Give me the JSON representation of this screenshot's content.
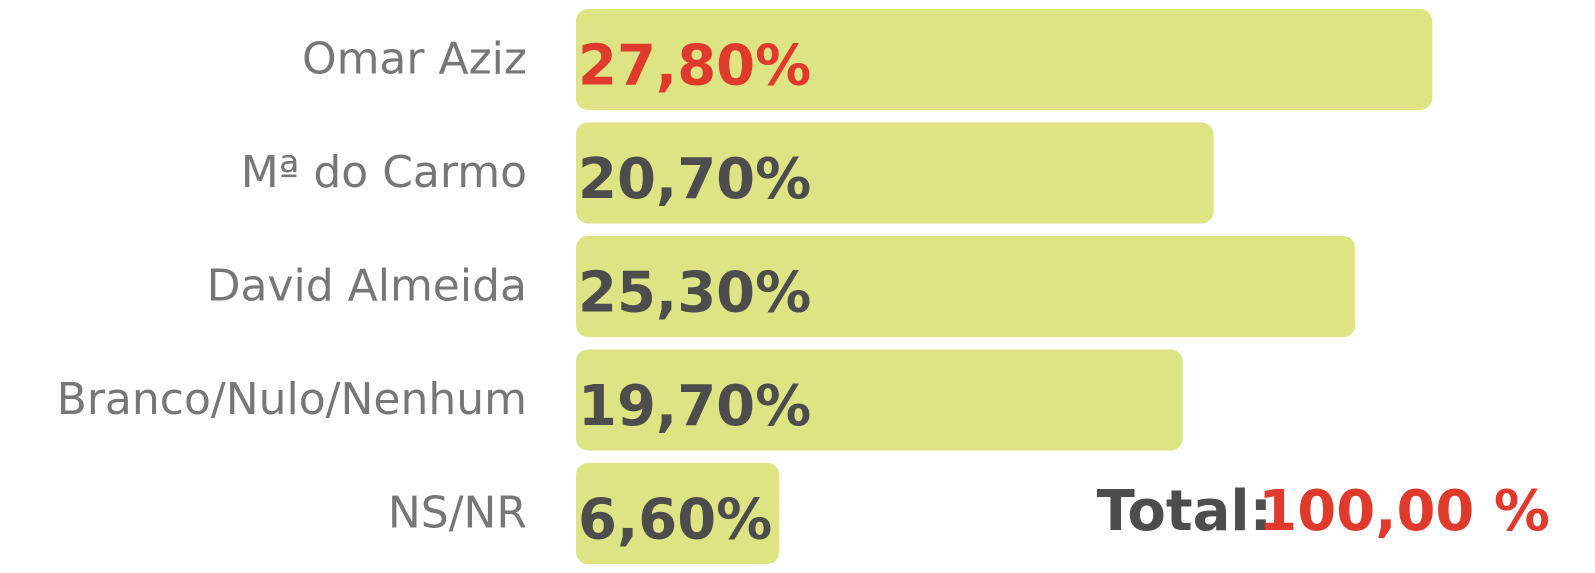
{
  "chart_data": {
    "type": "bar",
    "orientation": "horizontal",
    "categories": [
      "Omar Aziz",
      "Mª do Carmo",
      "David Almeida",
      "Branco/Nulo/Nenhum",
      "NS/NR"
    ],
    "values": [
      27.8,
      20.7,
      25.3,
      19.7,
      6.6
    ],
    "value_labels": [
      "27,80%",
      "20,70%",
      "25,30%",
      "19,70%",
      "6,60%"
    ],
    "value_label_colors": [
      "#e03a2c",
      "#4d4d4d",
      "#4d4d4d",
      "#4d4d4d",
      "#4d4d4d"
    ],
    "color": "#dce483",
    "total_label": "Total:",
    "total": "100,00 %"
  }
}
